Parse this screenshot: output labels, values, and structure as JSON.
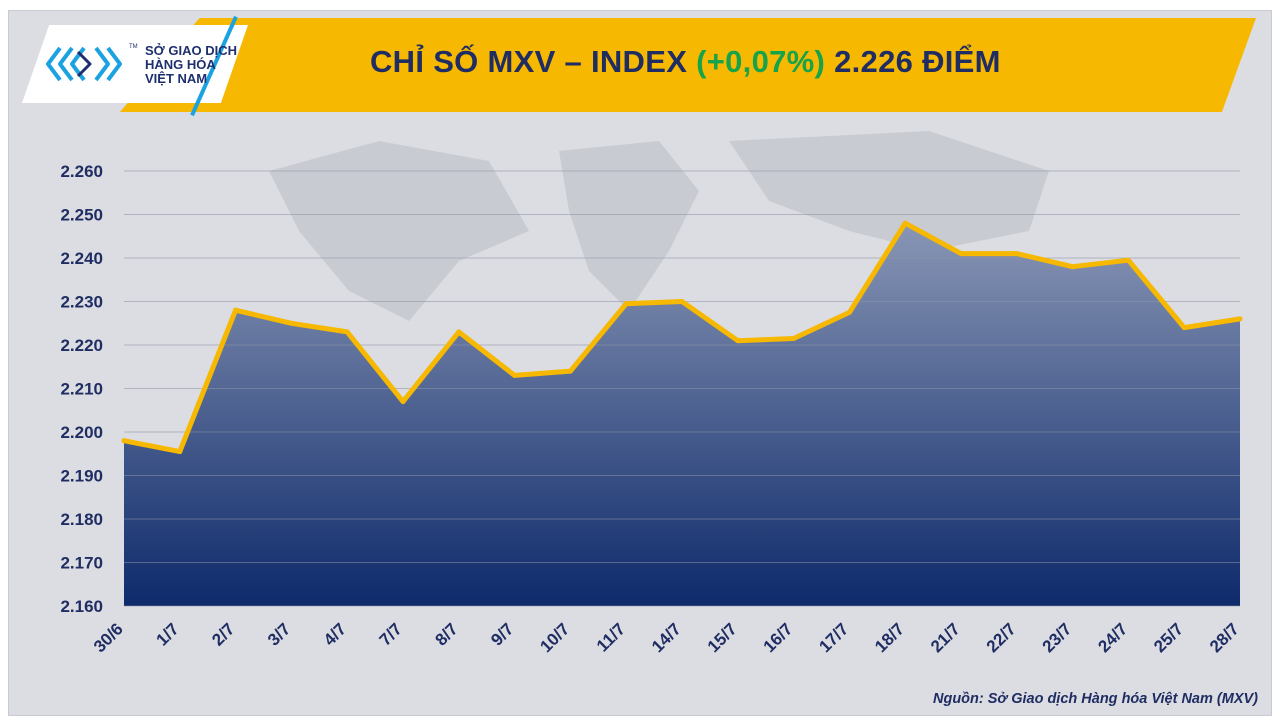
{
  "header": {
    "title_main": "CHỈ SỐ MXV – INDEX",
    "title_change": "(+0,07%)",
    "title_value": "2.226 ĐIỂM",
    "change_color": "#16a34a",
    "banner_color": "#f6b800"
  },
  "logo": {
    "line1": "SỞ GIAO DỊCH",
    "line2": "HÀNG HÓA",
    "line3": "VIỆT NAM",
    "tm": "TM",
    "icon": "mxv-chevron-logo-icon"
  },
  "source": "Nguồn: Sở Giao dịch Hàng hóa Việt Nam (MXV)",
  "chart_data": {
    "type": "area",
    "categories": [
      "30/6",
      "1/7",
      "2/7",
      "3/7",
      "4/7",
      "7/7",
      "8/7",
      "9/7",
      "10/7",
      "11/7",
      "14/7",
      "15/7",
      "16/7",
      "17/7",
      "18/7",
      "21/7",
      "22/7",
      "23/7",
      "24/7",
      "25/7",
      "28/7"
    ],
    "values": [
      2198,
      2195.5,
      2228,
      2225,
      2223,
      2207,
      2223,
      2213,
      2214,
      2229.5,
      2230,
      2221,
      2221.5,
      2227.5,
      2248,
      2241,
      2241,
      2238,
      2239.5,
      2224,
      2226
    ],
    "ylim": [
      2160,
      2260
    ],
    "yticks": [
      2160,
      2170,
      2180,
      2190,
      2200,
      2210,
      2220,
      2230,
      2240,
      2250,
      2260
    ],
    "ytick_labels": [
      "2.160",
      "2.170",
      "2.180",
      "2.190",
      "2.200",
      "2.210",
      "2.220",
      "2.230",
      "2.240",
      "2.250",
      "2.260"
    ],
    "grid": true,
    "line_color": "#f6b800",
    "fill_top_color": "#8996b5",
    "fill_bottom_color": "#0e2a6b"
  }
}
